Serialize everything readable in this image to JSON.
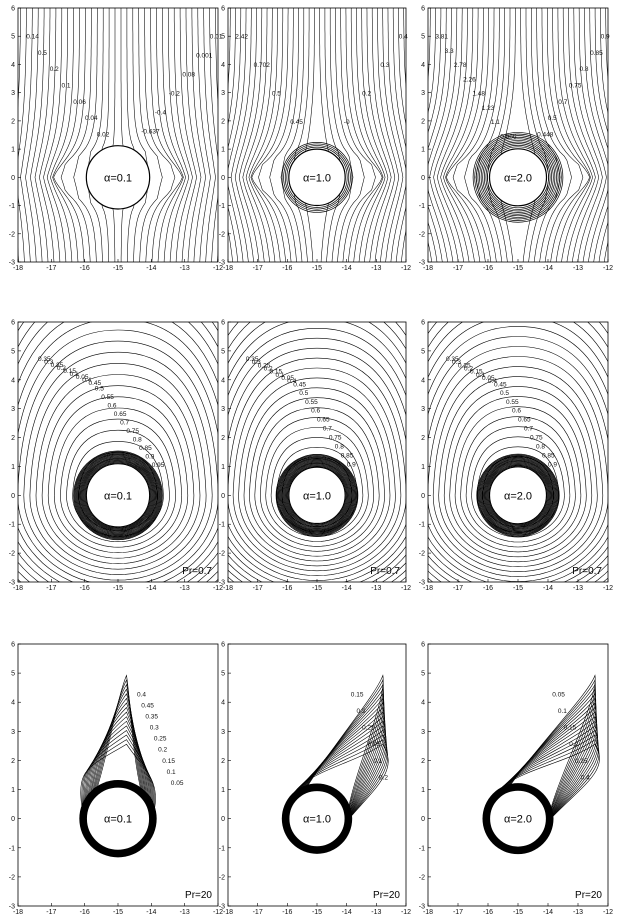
{
  "figure": {
    "rows": [
      {
        "kind": "streamlines",
        "panels": [
          {
            "alpha": "α=0.1",
            "pr": "",
            "labels": [
              "0.14",
              "0.5",
              "0.2",
              "0.1",
              "0.06",
              "0.04",
              "0.02",
              "0.01",
              "0.001",
              "0.08",
              "-0.2",
              "-0.4",
              "-0.637"
            ]
          },
          {
            "alpha": "α=1.0",
            "pr": "",
            "labels": [
              "2.42",
              "0.702",
              "0.5",
              "0.45",
              "0.4",
              "0.3",
              "0.2",
              "-0"
            ]
          },
          {
            "alpha": "α=2.0",
            "pr": "",
            "labels": [
              "3.81",
              "3.3",
              "2.78",
              "2.26",
              "1.48",
              "1.23",
              "1.1",
              "0.966",
              "0.9",
              "0.85",
              "0.8",
              "0.75",
              "0.7",
              "0.5",
              "0.448"
            ]
          }
        ]
      },
      {
        "kind": "isotherms",
        "panels": [
          {
            "alpha": "α=0.1",
            "pr": "Pr=0.7",
            "labels": [
              "0.35",
              "0.3",
              "0.25",
              "0.2",
              "0.15",
              "0.1",
              "0.05",
              "0.4",
              "0.45",
              "0.5",
              "0.55",
              "0.6",
              "0.65",
              "0.7",
              "0.75",
              "0.8",
              "0.85",
              "0.9",
              "0.95"
            ]
          },
          {
            "alpha": "α=1.0",
            "pr": "Pr=0.7",
            "labels": [
              "0.35",
              "0.3",
              "0.25",
              "0.2",
              "0.15",
              "0.1",
              "0.05",
              "0.4",
              "0.45",
              "0.5",
              "0.55",
              "0.6",
              "0.65",
              "0.7",
              "0.75",
              "0.8",
              "0.85",
              "0.9"
            ]
          },
          {
            "alpha": "α=2.0",
            "pr": "Pr=0.7",
            "labels": [
              "0.35",
              "0.3",
              "0.25",
              "0.2",
              "0.15",
              "0.1",
              "0.05",
              "0.4",
              "0.45",
              "0.5",
              "0.55",
              "0.6",
              "0.65",
              "0.7",
              "0.75",
              "0.8",
              "0.85",
              "0.9"
            ]
          }
        ]
      },
      {
        "kind": "isotherms-high-pr",
        "panels": [
          {
            "alpha": "α=0.1",
            "pr": "Pr=20",
            "labels": [
              "0.4",
              "0.45",
              "0.35",
              "0.3",
              "0.25",
              "0.2",
              "0.15",
              "0.1",
              "0.05"
            ]
          },
          {
            "alpha": "α=1.0",
            "pr": "Pr=20",
            "labels": [
              "0.15",
              "0.3",
              "0.25",
              "0.05",
              "0.1",
              "0.2"
            ]
          },
          {
            "alpha": "α=2.0",
            "pr": "Pr=20",
            "labels": [
              "0.05",
              "0.1",
              "0.15",
              "0.2",
              "0.25",
              "0.4"
            ]
          }
        ]
      }
    ]
  },
  "chart_data": {
    "type": "contour",
    "x_ticks": [
      -18,
      -17,
      -16,
      -15,
      -14,
      -13,
      -12
    ],
    "y_ticks": [
      -3,
      -2,
      -1,
      0,
      1,
      2,
      3,
      4,
      5,
      6
    ],
    "xlim": [
      -18,
      -12
    ],
    "ylim": [
      -3,
      6
    ],
    "cylinder_center": [
      -15,
      0
    ],
    "cylinder_radius": 0.95
  },
  "colors": {
    "ink": "#000000",
    "paper": "#ffffff"
  }
}
